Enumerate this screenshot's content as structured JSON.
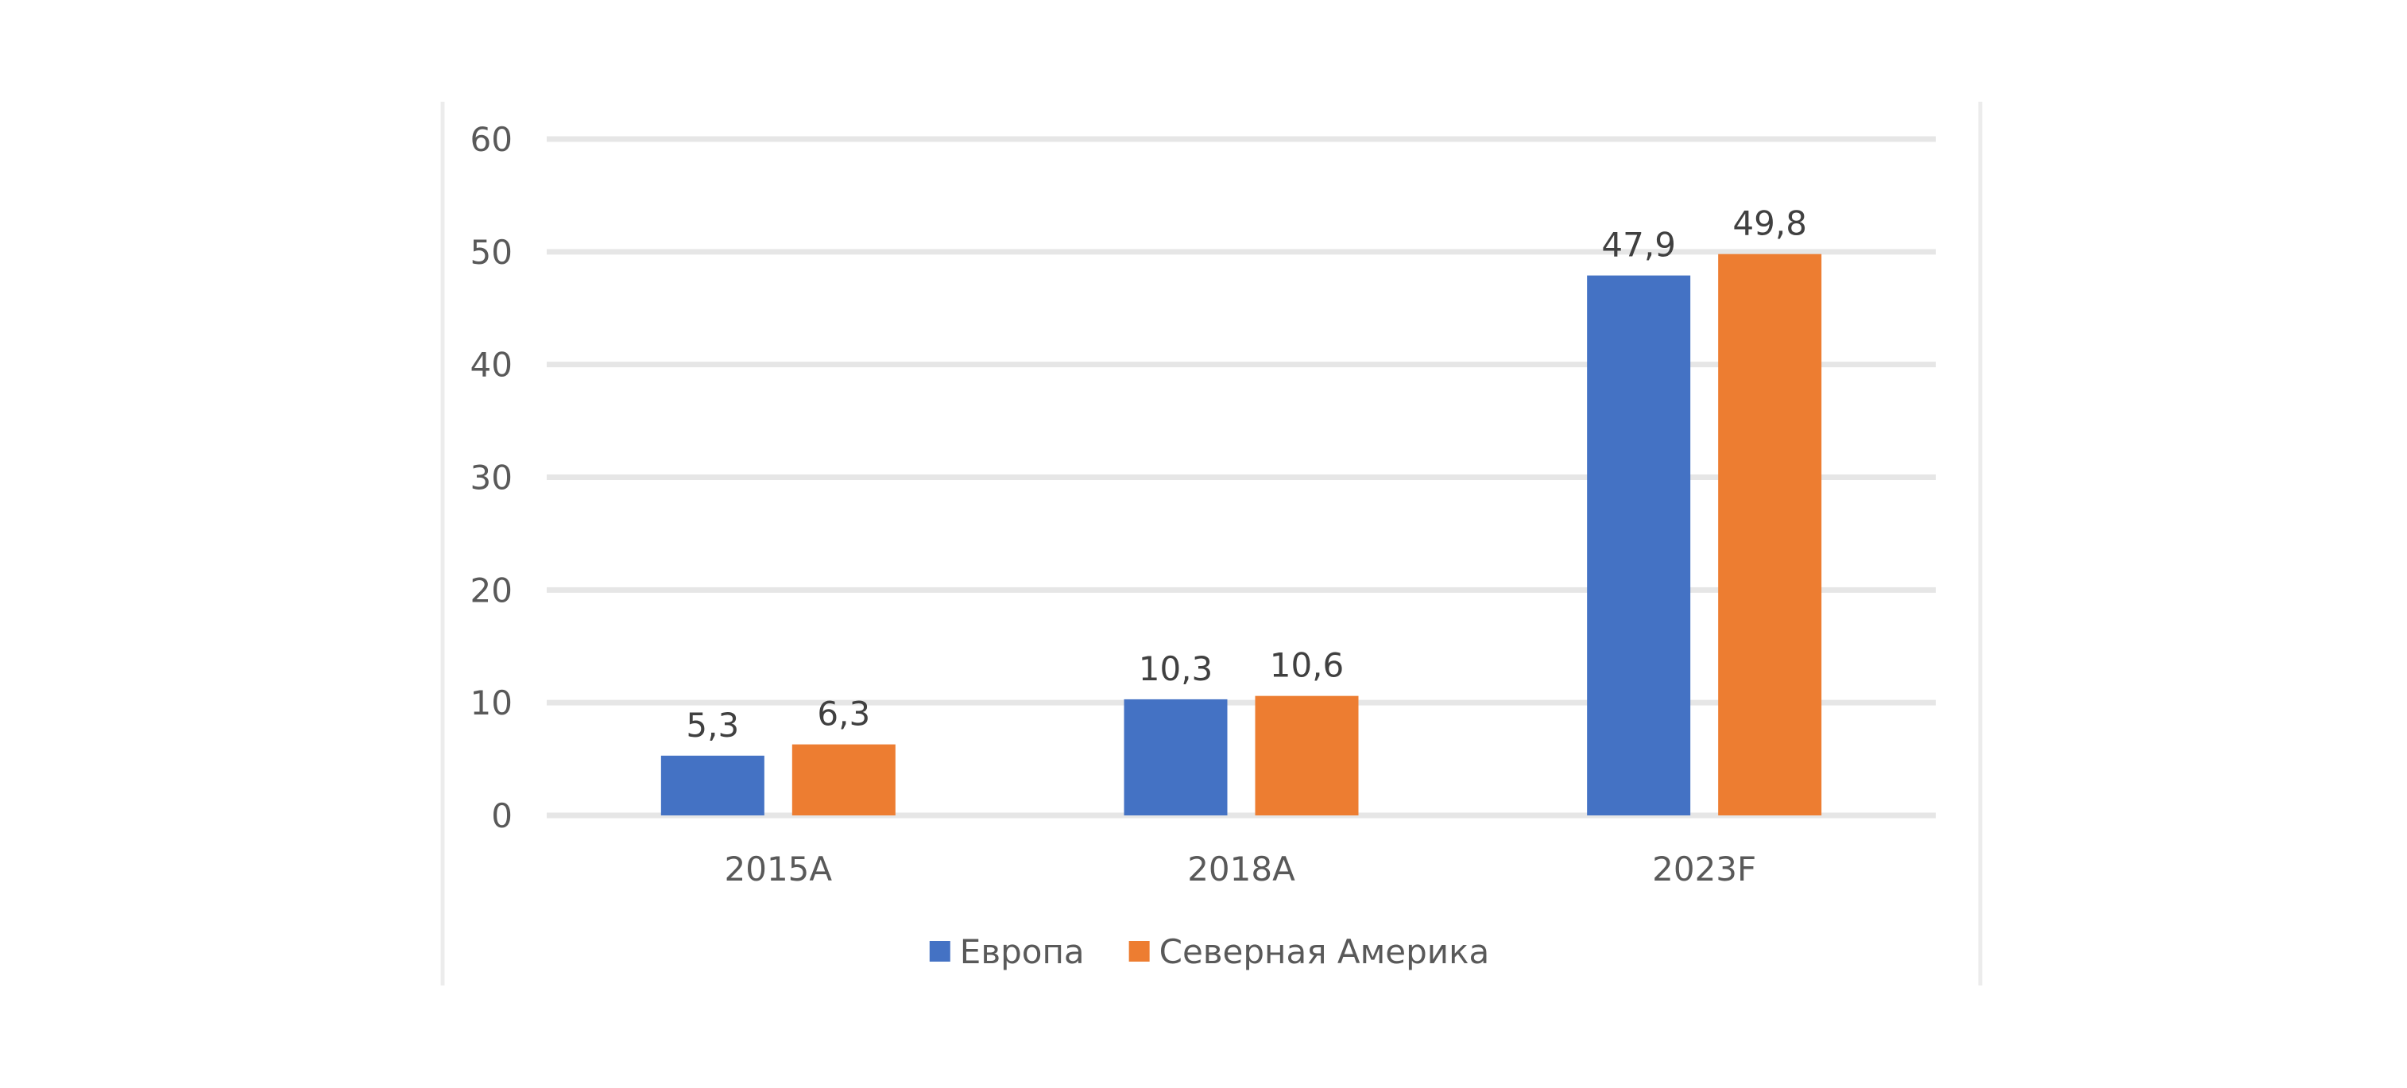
{
  "chart_data": {
    "type": "bar",
    "title": "",
    "xlabel": "",
    "ylabel": "",
    "categories": [
      "2015A",
      "2018A",
      "2023F"
    ],
    "series": [
      {
        "name": "Европа",
        "color": "#4472C4",
        "values": [
          5.3,
          10.3,
          47.9
        ],
        "labels": [
          "5,3",
          "10,3",
          "47,9"
        ]
      },
      {
        "name": "Северная Америка",
        "color": "#ED7D31",
        "values": [
          6.3,
          10.6,
          49.8
        ],
        "labels": [
          "6,3",
          "10,6",
          "49,8"
        ]
      }
    ],
    "ylim": [
      0,
      60
    ],
    "yticks": [
      0,
      10,
      20,
      30,
      40,
      50,
      60
    ],
    "ytick_labels": [
      "0",
      "10",
      "20",
      "30",
      "40",
      "50",
      "60"
    ],
    "grid": true,
    "legend_position": "bottom",
    "data_labels": true
  }
}
